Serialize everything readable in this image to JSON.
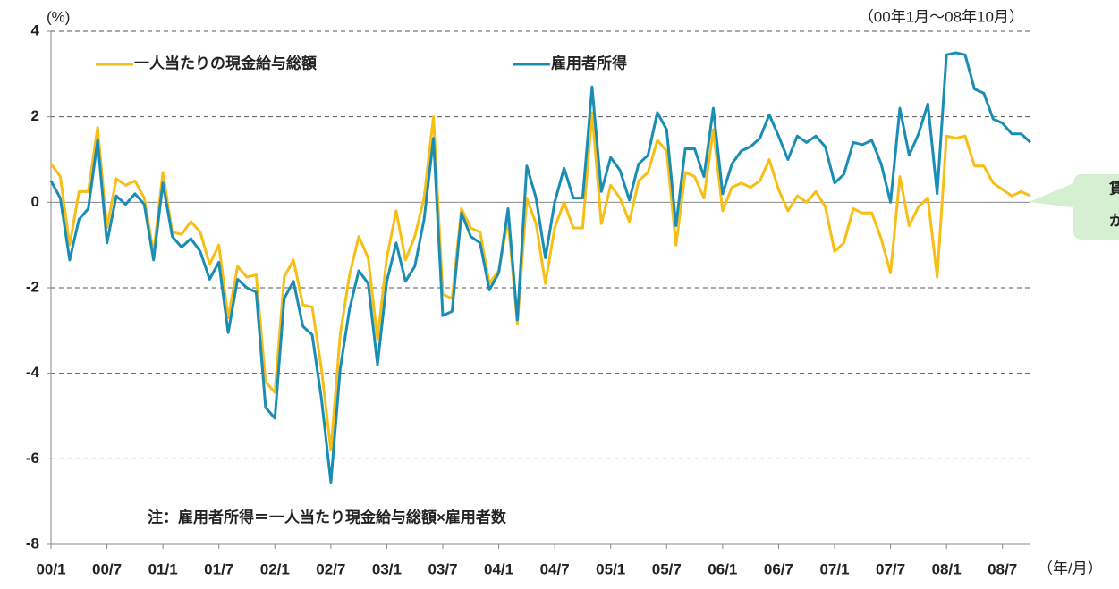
{
  "chart_data": {
    "type": "line",
    "y_label": "(%)",
    "period_note": "（00年1月～08年10月）",
    "x_unit": "（年/月）",
    "note": "注：雇用者所得＝一人当たり現金給与総額×雇用者数",
    "annotation": [
      "賃",
      "か"
    ],
    "categories": [
      "00/1",
      null,
      null,
      null,
      null,
      null,
      "00/7",
      null,
      null,
      null,
      null,
      null,
      "01/1",
      null,
      null,
      null,
      null,
      null,
      "01/7",
      null,
      null,
      null,
      null,
      null,
      "02/1",
      null,
      null,
      null,
      null,
      null,
      "02/7",
      null,
      null,
      null,
      null,
      null,
      "03/1",
      null,
      null,
      null,
      null,
      null,
      "03/7",
      null,
      null,
      null,
      null,
      null,
      "04/1",
      null,
      null,
      null,
      null,
      null,
      "04/7",
      null,
      null,
      null,
      null,
      null,
      "05/1",
      null,
      null,
      null,
      null,
      null,
      "05/7",
      null,
      null,
      null,
      null,
      null,
      "06/1",
      null,
      null,
      null,
      null,
      null,
      "06/7",
      null,
      null,
      null,
      null,
      null,
      "07/1",
      null,
      null,
      null,
      null,
      null,
      "07/7",
      null,
      null,
      null,
      null,
      null,
      "08/1",
      null,
      null,
      null,
      null,
      null,
      "08/7",
      null,
      null,
      null
    ],
    "series": [
      {
        "name": "一人当たりの現金給与総額",
        "color": "#f7be16",
        "values": [
          0.9,
          0.6,
          -1.0,
          0.25,
          0.25,
          1.75,
          -0.6,
          0.55,
          0.4,
          0.5,
          0.1,
          -1.2,
          0.7,
          -0.7,
          -0.75,
          -0.45,
          -0.7,
          -1.45,
          -1.0,
          -2.7,
          -1.5,
          -1.75,
          -1.7,
          -4.2,
          -4.45,
          -1.75,
          -1.35,
          -2.4,
          -2.45,
          -3.9,
          -5.8,
          -3.1,
          -1.7,
          -0.8,
          -1.3,
          -3.2,
          -1.3,
          -0.2,
          -1.35,
          -0.8,
          0.1,
          2.0,
          -2.15,
          -2.25,
          -0.15,
          -0.6,
          -0.7,
          -1.9,
          -1.6,
          -0.4,
          -2.85,
          0.1,
          -0.5,
          -1.9,
          -0.6,
          0.0,
          -0.6,
          -0.6,
          2.1,
          -0.5,
          0.4,
          0.1,
          -0.45,
          0.5,
          0.7,
          1.45,
          1.2,
          -1.0,
          0.7,
          0.6,
          0.1,
          1.7,
          -0.2,
          0.35,
          0.45,
          0.35,
          0.5,
          1.0,
          0.3,
          -0.2,
          0.15,
          0.0,
          0.25,
          -0.1,
          -1.15,
          -0.95,
          -0.15,
          -0.25,
          -0.25,
          -0.85,
          -1.65,
          0.6,
          -0.55,
          -0.1,
          0.1,
          -1.75,
          1.55,
          1.5,
          1.55,
          0.85,
          0.85,
          0.45,
          0.3,
          0.15,
          0.25,
          0.15
        ]
      },
      {
        "name": "雇用者所得",
        "color": "#1a8db5",
        "values": [
          0.5,
          0.1,
          -1.35,
          -0.4,
          -0.15,
          1.45,
          -0.95,
          0.15,
          -0.05,
          0.2,
          -0.05,
          -1.35,
          0.45,
          -0.8,
          -1.05,
          -0.85,
          -1.15,
          -1.8,
          -1.4,
          -3.05,
          -1.8,
          -2.0,
          -2.1,
          -4.8,
          -5.05,
          -2.25,
          -1.85,
          -2.9,
          -3.1,
          -4.6,
          -6.55,
          -3.9,
          -2.5,
          -1.6,
          -1.9,
          -3.8,
          -1.85,
          -0.95,
          -1.85,
          -1.5,
          -0.4,
          1.5,
          -2.65,
          -2.55,
          -0.25,
          -0.8,
          -0.95,
          -2.05,
          -1.65,
          -0.15,
          -2.75,
          0.85,
          0.1,
          -1.3,
          0.0,
          0.8,
          0.1,
          0.1,
          2.7,
          0.25,
          1.05,
          0.75,
          0.05,
          0.9,
          1.1,
          2.1,
          1.7,
          -0.55,
          1.25,
          1.25,
          0.6,
          2.2,
          0.2,
          0.9,
          1.2,
          1.3,
          1.5,
          2.05,
          1.55,
          1.0,
          1.55,
          1.4,
          1.55,
          1.3,
          0.45,
          0.65,
          1.4,
          1.35,
          1.45,
          0.9,
          0.0,
          2.2,
          1.1,
          1.6,
          2.3,
          0.2,
          3.45,
          3.5,
          3.45,
          2.65,
          2.55,
          1.95,
          1.85,
          1.6,
          1.6,
          1.4
        ]
      }
    ],
    "ylim": [
      -8,
      4
    ],
    "yticks": [
      -8,
      -6,
      -4,
      -2,
      0,
      2,
      4
    ],
    "grid": true
  }
}
